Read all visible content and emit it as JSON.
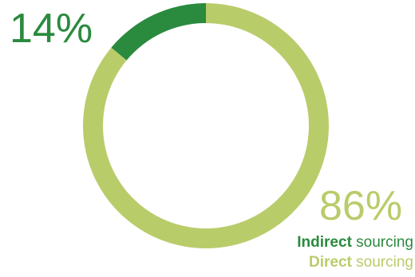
{
  "chart_data": {
    "type": "pie",
    "variant": "donut",
    "start_angle_deg": 0,
    "direction": "counterclockwise-from-top",
    "slices": [
      {
        "label": "Indirect sourcing",
        "value": 14,
        "color": "#2a8a3e"
      },
      {
        "label": "Direct sourcing",
        "value": 86,
        "color": "#b9cc6a"
      }
    ]
  },
  "labels": {
    "indirect_pct": "14%",
    "direct_pct": "86%"
  },
  "legend": {
    "indirect_bold": "Indirect",
    "indirect_rest": " sourcing",
    "direct_bold": "Direct",
    "direct_rest": " sourcing"
  },
  "colors": {
    "indirect": "#2a8a3e",
    "direct": "#b9cc6a"
  }
}
